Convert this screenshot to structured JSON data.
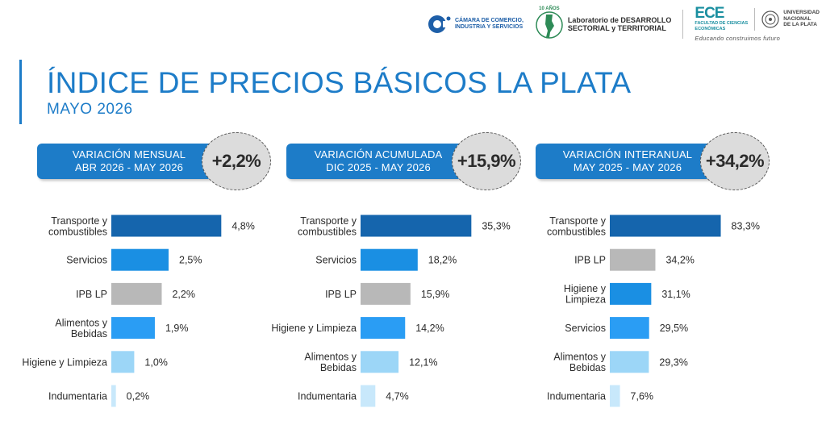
{
  "header": {
    "logos": {
      "chamber_line1": "CÁMARA DE COMERCIO,",
      "chamber_line2": "INDUSTRIA Y SERVICIOS",
      "anniversary": "10 AÑOS",
      "lab_line1": "Laboratorio de DESARROLLO",
      "lab_line2": "SECTORIAL y TERRITORIAL",
      "ecu_letters": "ECE",
      "ecu_line1": "FACULTAD DE CIENCIAS",
      "ecu_line2": "ECONÓMICAS",
      "unlp_line1": "UNIVERSIDAD",
      "unlp_line2": "NACIONAL",
      "unlp_line3": "DE LA PLATA",
      "tagline": "Educando construimos futuro"
    },
    "title": "ÍNDICE DE PRECIOS BÁSICOS LA PLATA",
    "subtitle": "MAYO 2026"
  },
  "colors": {
    "accent": "#1d7cc8",
    "darkblue": "#1565ad",
    "midblue": "#1a8fe3",
    "blue": "#2a9df4",
    "lightblue": "#9cd6f7",
    "paleblue": "#c8e8fb",
    "gray": "#b8b8b8"
  },
  "chart_data": [
    {
      "type": "bar",
      "orientation": "horizontal",
      "pill_line1": "VARIACIÓN MENSUAL",
      "pill_line2": "ABR 2026 - MAY 2026",
      "headline": "+2,2%",
      "xlim": [
        0,
        5
      ],
      "categories": [
        [
          "Transporte y",
          "combustibles"
        ],
        [
          "Servicios"
        ],
        [
          "IPB LP"
        ],
        [
          "Alimentos y",
          "Bebidas"
        ],
        [
          "Higiene y Limpieza"
        ],
        [
          "Indumentaria"
        ]
      ],
      "values": [
        4.8,
        2.5,
        2.2,
        1.9,
        1.0,
        0.2
      ],
      "labels": [
        "4,8%",
        "2,5%",
        "2,2%",
        "1,9%",
        "1,0%",
        "0,2%"
      ],
      "bar_colors": [
        "darkblue",
        "midblue",
        "gray",
        "blue",
        "lightblue",
        "paleblue"
      ]
    },
    {
      "type": "bar",
      "orientation": "horizontal",
      "pill_line1": "VARIACIÓN ACUMULADA",
      "pill_line2": "DIC 2025 - MAY 2026",
      "headline": "+15,9%",
      "xlim": [
        0,
        36.5
      ],
      "categories": [
        [
          "Transporte y",
          "combustibles"
        ],
        [
          "Servicios"
        ],
        [
          "IPB LP"
        ],
        [
          "Higiene y Limpieza"
        ],
        [
          "Alimentos y",
          "Bebidas"
        ],
        [
          "Indumentaria"
        ]
      ],
      "values": [
        35.3,
        18.2,
        15.9,
        14.2,
        12.1,
        4.7
      ],
      "labels": [
        "35,3%",
        "18,2%",
        "15,9%",
        "14,2%",
        "12,1%",
        "4,7%"
      ],
      "bar_colors": [
        "darkblue",
        "midblue",
        "gray",
        "blue",
        "lightblue",
        "paleblue"
      ]
    },
    {
      "type": "bar",
      "orientation": "horizontal",
      "pill_line1": "VARIACIÓN INTERANUAL",
      "pill_line2": "MAY 2025 - MAY 2026",
      "headline": "+34,2%",
      "xlim": [
        0,
        86
      ],
      "categories": [
        [
          "Transporte y",
          "combustibles"
        ],
        [
          "IPB LP"
        ],
        [
          "Higiene y",
          "Limpieza"
        ],
        [
          "Servicios"
        ],
        [
          "Alimentos y",
          "Bebidas"
        ],
        [
          "Indumentaria"
        ]
      ],
      "values": [
        83.3,
        34.2,
        31.1,
        29.5,
        29.3,
        7.6
      ],
      "labels": [
        "83,3%",
        "34,2%",
        "31,1%",
        "29,5%",
        "29,3%",
        "7,6%"
      ],
      "bar_colors": [
        "darkblue",
        "gray",
        "midblue",
        "blue",
        "lightblue",
        "paleblue"
      ]
    }
  ]
}
